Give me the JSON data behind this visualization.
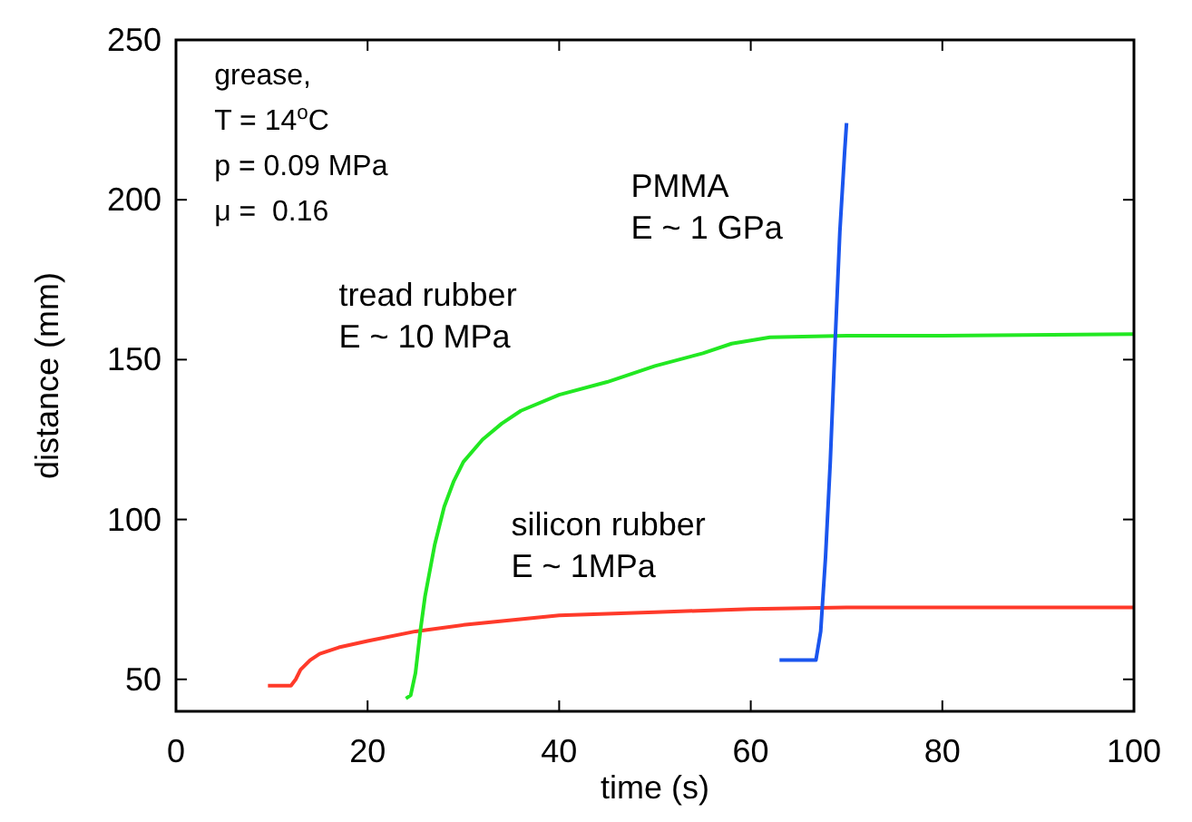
{
  "chart_data": {
    "type": "line",
    "xlabel": "time (s)",
    "ylabel": "distance (mm)",
    "xlim": [
      0,
      100
    ],
    "ylim": [
      40,
      250
    ],
    "xticks": [
      0,
      20,
      40,
      60,
      80,
      100
    ],
    "yticks": [
      50,
      100,
      150,
      200,
      250
    ],
    "grid": false,
    "marker": "none",
    "line_style": "solid",
    "annotations": [
      "grease,\nT = 14$^{o}$C\np = 0.09 MPa\nμ =  0.16"
    ],
    "series": [
      {
        "name": "silicon rubber\nE ~ 1MPa",
        "color": "#ff3a2a",
        "x": [
          9.6,
          12,
          12.5,
          13,
          14,
          15,
          17,
          20,
          25,
          30,
          35,
          40,
          50,
          60,
          70,
          80,
          100
        ],
        "values": [
          48,
          48,
          50,
          53,
          56,
          58,
          60,
          62,
          65,
          67,
          68.5,
          70,
          71,
          72,
          72.5,
          72.5,
          72.5
        ]
      },
      {
        "name": "tread rubber\nE ~ 10 MPa",
        "color": "#22e822",
        "x": [
          24,
          24.5,
          25,
          25.5,
          26,
          27,
          28,
          29,
          30,
          32,
          34,
          36,
          40,
          45,
          50,
          55,
          58,
          62,
          70,
          80,
          100
        ],
        "values": [
          44,
          45,
          52,
          65,
          76,
          92,
          104,
          112,
          118,
          125,
          130,
          134,
          139,
          143,
          148,
          152,
          155,
          157,
          157.5,
          157.5,
          158
        ]
      },
      {
        "name": "PMMA\nE ~ 1 GPa",
        "color": "#1a55ee",
        "x": [
          63,
          66.8,
          67.3,
          67.8,
          68.3,
          68.8,
          69.3,
          69.8,
          70
        ],
        "values": [
          56,
          56,
          65,
          88,
          118,
          155,
          190,
          215,
          224
        ]
      }
    ]
  }
}
